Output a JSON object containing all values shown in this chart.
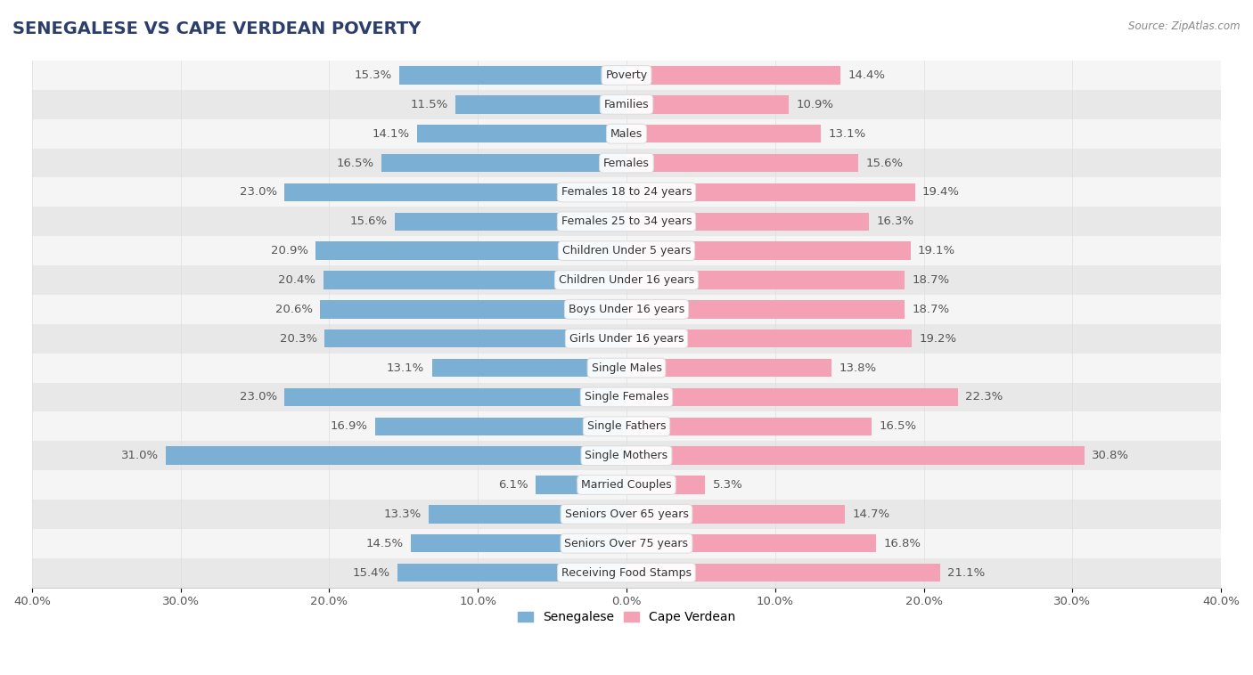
{
  "title": "SENEGALESE VS CAPE VERDEAN POVERTY",
  "source": "Source: ZipAtlas.com",
  "categories": [
    "Poverty",
    "Families",
    "Males",
    "Females",
    "Females 18 to 24 years",
    "Females 25 to 34 years",
    "Children Under 5 years",
    "Children Under 16 years",
    "Boys Under 16 years",
    "Girls Under 16 years",
    "Single Males",
    "Single Females",
    "Single Fathers",
    "Single Mothers",
    "Married Couples",
    "Seniors Over 65 years",
    "Seniors Over 75 years",
    "Receiving Food Stamps"
  ],
  "senegalese": [
    15.3,
    11.5,
    14.1,
    16.5,
    23.0,
    15.6,
    20.9,
    20.4,
    20.6,
    20.3,
    13.1,
    23.0,
    16.9,
    31.0,
    6.1,
    13.3,
    14.5,
    15.4
  ],
  "cape_verdean": [
    14.4,
    10.9,
    13.1,
    15.6,
    19.4,
    16.3,
    19.1,
    18.7,
    18.7,
    19.2,
    13.8,
    22.3,
    16.5,
    30.8,
    5.3,
    14.7,
    16.8,
    21.1
  ],
  "senegalese_color": "#7bafd4",
  "cape_verdean_color": "#f4a0b5",
  "background_color": "#ffffff",
  "row_bg_light": "#f5f5f5",
  "row_bg_dark": "#e8e8e8",
  "xlim": 40.0,
  "bar_height": 0.62,
  "label_fontsize": 9.5,
  "title_fontsize": 14,
  "category_fontsize": 9.0,
  "tick_fontsize": 9.5
}
